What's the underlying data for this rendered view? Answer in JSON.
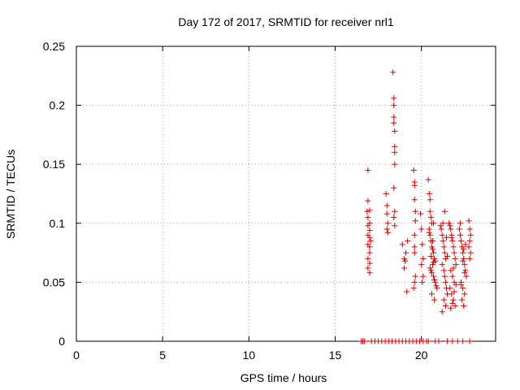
{
  "chart_data": {
    "type": "scatter",
    "title": "Day 172 of 2017, SRMTID for receiver nrl1",
    "xlabel": "GPS time / hours",
    "ylabel": "SRMTID / TECUs",
    "xlim": [
      0,
      24.3
    ],
    "ylim": [
      0,
      0.25
    ],
    "x_ticks": [
      0,
      5,
      10,
      15,
      20
    ],
    "y_ticks": [
      0,
      0.05,
      0.1,
      0.15,
      0.2,
      0.25
    ],
    "x_tick_labels": [
      "0",
      "5",
      "10",
      "15",
      "20"
    ],
    "y_tick_labels": [
      "0",
      "0.05",
      "0.1",
      "0.15",
      "0.2",
      "0.25"
    ],
    "grid": true,
    "legend": "none",
    "marker": "+",
    "series_color": "#dd0000",
    "series": [
      {
        "x": [
          16.5,
          16.6,
          16.7,
          17.1,
          17.3,
          17.5,
          17.7,
          17.9,
          18.1,
          18.3,
          18.5,
          18.7,
          18.9,
          19.1,
          19.3,
          19.5,
          19.7,
          19.9,
          20.1,
          20.3,
          20.4,
          20.8,
          21.0,
          21.5,
          21.8,
          22.1,
          22.4,
          22.8,
          16.9,
          16.9,
          16.9,
          16.9,
          16.9,
          16.9,
          16.9,
          16.9,
          17.0,
          17.0,
          17.0,
          17.0,
          17.0,
          17.0,
          17.0,
          17.0,
          16.85,
          17.05,
          17.95,
          18.0,
          18.0,
          18.0,
          18.05,
          18.05,
          18.35,
          18.4,
          18.4,
          18.4,
          18.4,
          18.45,
          18.45,
          18.45,
          18.45,
          18.4,
          18.45,
          18.4,
          18.45,
          18.9,
          19.0,
          19.0,
          19.05,
          19.1,
          19.2,
          19.15,
          19.55,
          19.6,
          19.6,
          19.6,
          19.65,
          19.65,
          19.6,
          19.6,
          19.65,
          19.6,
          19.55,
          19.6,
          19.95,
          20.0,
          20.05,
          20.1,
          20.0,
          20.1,
          20.05,
          20.4,
          20.45,
          20.5,
          20.5,
          20.55,
          20.6,
          20.45,
          20.5,
          20.55,
          20.6,
          20.65,
          20.7,
          20.75,
          20.7,
          20.65,
          20.5,
          20.55,
          20.6,
          20.7,
          20.75,
          20.8,
          20.85,
          20.9,
          20.45,
          20.55,
          20.65,
          20.7,
          20.8,
          20.6,
          20.75,
          21.1,
          21.15,
          21.2,
          21.25,
          21.3,
          21.35,
          21.4,
          21.2,
          21.3,
          21.35,
          21.4,
          21.45,
          21.5,
          21.25,
          21.35,
          21.45,
          21.3,
          21.4,
          21.2,
          21.5,
          21.6,
          21.65,
          21.7,
          21.75,
          21.8,
          21.85,
          21.9,
          21.95,
          22.0,
          21.7,
          21.8,
          21.9,
          21.65,
          21.75,
          21.85,
          21.95,
          21.7,
          21.8,
          21.9,
          22.0,
          21.75,
          21.85,
          22.2,
          22.25,
          22.3,
          22.35,
          22.4,
          22.45,
          22.5,
          22.55,
          22.6,
          22.3,
          22.4,
          22.5,
          22.35,
          22.45,
          22.25,
          22.55,
          22.4,
          22.5,
          22.3,
          22.45,
          22.75,
          22.8,
          22.85,
          22.8,
          22.75,
          22.85,
          22.8
        ],
        "y": [
          0,
          0,
          0,
          0,
          0,
          0,
          0,
          0,
          0,
          0,
          0,
          0,
          0,
          0,
          0,
          0,
          0,
          0,
          0,
          0,
          0,
          0,
          0,
          0,
          0,
          0,
          0,
          0,
          0.145,
          0.119,
          0.105,
          0.098,
          0.09,
          0.082,
          0.07,
          0.062,
          0.111,
          0.1,
          0.094,
          0.088,
          0.08,
          0.075,
          0.066,
          0.058,
          0.11,
          0.085,
          0.125,
          0.115,
          0.108,
          0.095,
          0.1,
          0.092,
          0.228,
          0.206,
          0.2,
          0.19,
          0.185,
          0.178,
          0.165,
          0.16,
          0.15,
          0.13,
          0.11,
          0.105,
          0.098,
          0.082,
          0.07,
          0.062,
          0.068,
          0.075,
          0.085,
          0.042,
          0.145,
          0.135,
          0.132,
          0.12,
          0.11,
          0.102,
          0.08,
          0.075,
          0.055,
          0.05,
          0.045,
          0.09,
          0.108,
          0.095,
          0.082,
          0.07,
          0.065,
          0.055,
          0.05,
          0.137,
          0.125,
          0.12,
          0.11,
          0.105,
          0.1,
          0.095,
          0.09,
          0.085,
          0.08,
          0.078,
          0.075,
          0.07,
          0.067,
          0.065,
          0.062,
          0.06,
          0.058,
          0.055,
          0.052,
          0.05,
          0.047,
          0.045,
          0.092,
          0.072,
          0.085,
          0.1,
          0.068,
          0.04,
          0.035,
          0.098,
          0.095,
          0.09,
          0.085,
          0.08,
          0.075,
          0.07,
          0.065,
          0.06,
          0.055,
          0.05,
          0.045,
          0.04,
          0.1,
          0.11,
          0.088,
          0.035,
          0.03,
          0.025,
          0.072,
          0.1,
          0.098,
          0.095,
          0.09,
          0.085,
          0.08,
          0.075,
          0.07,
          0.065,
          0.06,
          0.055,
          0.05,
          0.045,
          0.04,
          0.035,
          0.03,
          0.028,
          0.032,
          0.042,
          0.048,
          0.088,
          0.062,
          0.095,
          0.09,
          0.085,
          0.08,
          0.075,
          0.07,
          0.065,
          0.06,
          0.055,
          0.05,
          0.045,
          0.04,
          0.035,
          0.03,
          0.1,
          0.082,
          0.068,
          0.058,
          0.048,
          0.078,
          0.102,
          0.095,
          0.09,
          0.085,
          0.08,
          0.075,
          0.07
        ]
      }
    ]
  }
}
